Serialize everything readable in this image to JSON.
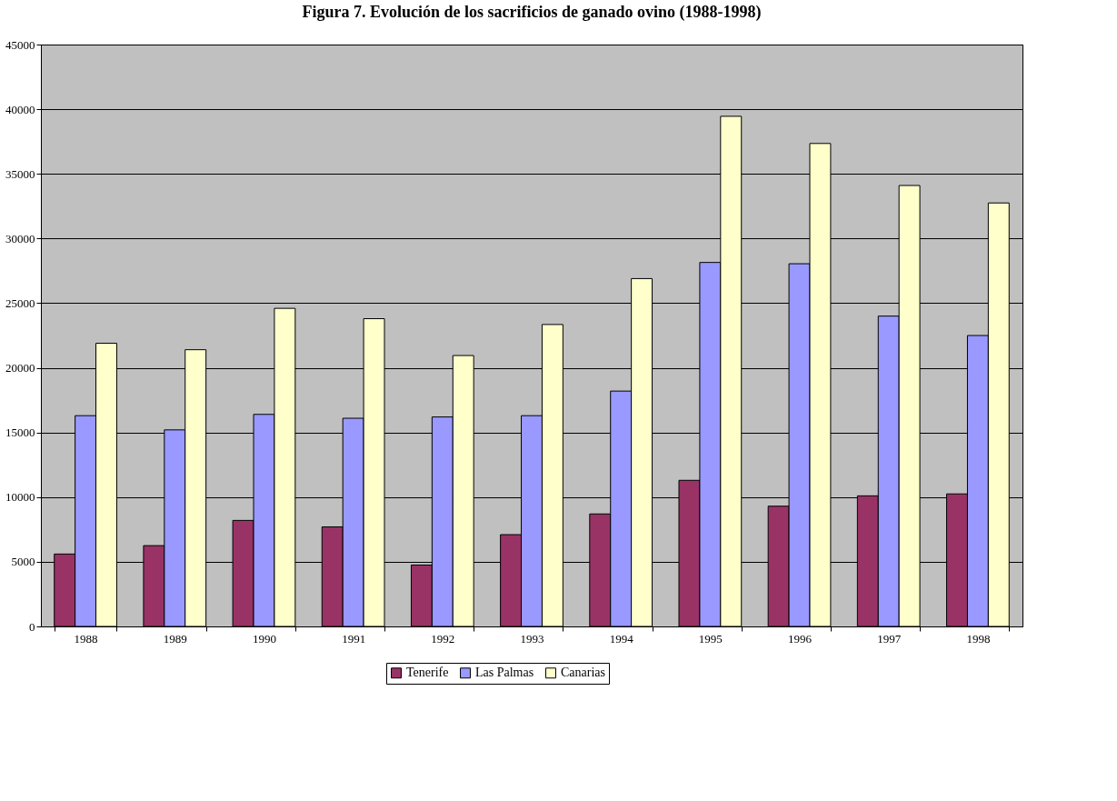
{
  "chart_data": {
    "type": "bar",
    "title": "Figura 7. Evolución de los sacrificios de ganado ovino (1988-1998)",
    "categories": [
      "1988",
      "1989",
      "1990",
      "1991",
      "1992",
      "1993",
      "1994",
      "1995",
      "1996",
      "1997",
      "1998"
    ],
    "series": [
      {
        "name": "Tenerife",
        "color": "#993366",
        "values": [
          5600,
          6250,
          8200,
          7700,
          4750,
          7100,
          8700,
          11300,
          9300,
          10100,
          10250
        ]
      },
      {
        "name": "Las Palmas",
        "color": "#9999ff",
        "values": [
          16300,
          15200,
          16400,
          16100,
          16200,
          16300,
          18200,
          28150,
          28050,
          24000,
          22500
        ]
      },
      {
        "name": "Canarias",
        "color": "#ffffcc",
        "values": [
          21900,
          21400,
          24600,
          23800,
          20950,
          23350,
          26900,
          39450,
          37350,
          34100,
          32750
        ]
      }
    ],
    "ylim": [
      0,
      45000
    ],
    "yticks": [
      0,
      5000,
      10000,
      15000,
      20000,
      25000,
      30000,
      35000,
      40000,
      45000
    ],
    "grid": "y",
    "legend": "bottom"
  }
}
